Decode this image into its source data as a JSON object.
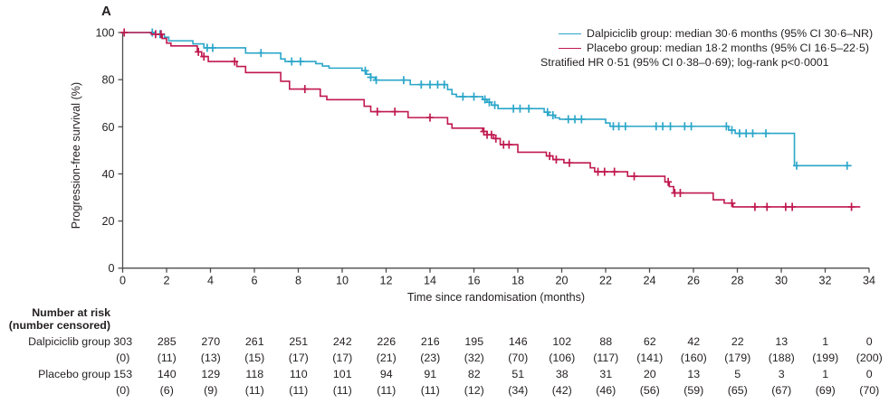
{
  "panel_label": "A",
  "colors": {
    "dalpiciclib": "#2BA6C9",
    "placebo": "#C0194F",
    "axis": "#4d4d4f",
    "text": "#231f20"
  },
  "legend": {
    "dalpiciclib_label": "Dalpiciclib group: median 30·6 months (95% CI 30·6–NR)",
    "placebo_label": "Placebo group: median 18·2 months (95% CI 16·5–22·5)",
    "stratified_note": "Stratified HR 0·51 (95% CI 0·38–0·69); log-rank p<0·0001"
  },
  "chart_data": {
    "type": "line",
    "subtype": "kaplan-meier-step",
    "title": "",
    "xlabel": "Time since randomisation (months)",
    "ylabel": "Progression-free survival (%)",
    "xlim": [
      0,
      34
    ],
    "xtick_step": 2,
    "ylim": [
      0,
      100
    ],
    "ytick_step": 20,
    "grid": false,
    "legend_position": "top-right",
    "series": [
      {
        "name": "Dalpiciclib group",
        "color": "#2BA6C9",
        "median_months": "30·6",
        "ci_95": "30·6–NR",
        "steps": [
          [
            0,
            100
          ],
          [
            1.5,
            99.3
          ],
          [
            1.9,
            98.0
          ],
          [
            2.1,
            96.5
          ],
          [
            3.2,
            95.2
          ],
          [
            3.7,
            93.5
          ],
          [
            5.6,
            91.3
          ],
          [
            7.2,
            88.8
          ],
          [
            7.4,
            87.7
          ],
          [
            8.8,
            86.8
          ],
          [
            9.1,
            85.8
          ],
          [
            9.4,
            84.9
          ],
          [
            10.9,
            83.8
          ],
          [
            11.1,
            82.3
          ],
          [
            11.3,
            81.0
          ],
          [
            11.5,
            79.8
          ],
          [
            13.1,
            77.9
          ],
          [
            14.8,
            75.8
          ],
          [
            15.0,
            73.8
          ],
          [
            15.2,
            72.8
          ],
          [
            16.4,
            71.6
          ],
          [
            16.6,
            70.4
          ],
          [
            16.8,
            69.2
          ],
          [
            17.1,
            67.7
          ],
          [
            19.2,
            66.2
          ],
          [
            19.4,
            64.9
          ],
          [
            19.7,
            63.8
          ],
          [
            19.9,
            63.2
          ],
          [
            22.0,
            61.6
          ],
          [
            22.2,
            60.2
          ],
          [
            27.6,
            58.6
          ],
          [
            27.9,
            57.2
          ],
          [
            30.6,
            43.5
          ]
        ],
        "end_month": 33.2,
        "censor_months": [
          1.35,
          1.7,
          3.85,
          4.1,
          6.3,
          7.7,
          8.1,
          11.05,
          11.3,
          11.55,
          12.8,
          13.6,
          14.0,
          14.35,
          14.65,
          15.5,
          16.0,
          16.5,
          16.7,
          16.95,
          17.8,
          18.1,
          18.5,
          19.35,
          19.6,
          20.3,
          20.6,
          20.9,
          22.35,
          22.6,
          22.9,
          24.3,
          24.6,
          24.95,
          25.6,
          25.9,
          27.5,
          27.75,
          28.1,
          28.4,
          28.7,
          29.3,
          30.7,
          33.0
        ]
      },
      {
        "name": "Placebo group",
        "color": "#C0194F",
        "median_months": "18·2",
        "ci_95": "16·5–22·5",
        "steps": [
          [
            0,
            100
          ],
          [
            1.3,
            99.3
          ],
          [
            1.8,
            97.5
          ],
          [
            2.0,
            95.5
          ],
          [
            2.2,
            94.3
          ],
          [
            3.4,
            91.8
          ],
          [
            3.6,
            89.8
          ],
          [
            3.9,
            87.7
          ],
          [
            5.2,
            85.6
          ],
          [
            5.6,
            83.0
          ],
          [
            7.2,
            79.3
          ],
          [
            7.6,
            76.0
          ],
          [
            9.0,
            73.0
          ],
          [
            9.3,
            71.5
          ],
          [
            11.0,
            68.7
          ],
          [
            11.3,
            66.4
          ],
          [
            13.0,
            63.9
          ],
          [
            14.8,
            61.2
          ],
          [
            15.0,
            59.4
          ],
          [
            16.4,
            58.0
          ],
          [
            16.6,
            56.6
          ],
          [
            16.9,
            55.0
          ],
          [
            17.2,
            52.4
          ],
          [
            18.0,
            49.2
          ],
          [
            19.3,
            47.6
          ],
          [
            19.6,
            46.1
          ],
          [
            20.1,
            44.7
          ],
          [
            21.3,
            42.6
          ],
          [
            21.5,
            40.9
          ],
          [
            23.0,
            39.0
          ],
          [
            24.7,
            36.6
          ],
          [
            24.9,
            34.6
          ],
          [
            25.1,
            31.9
          ],
          [
            26.9,
            29.0
          ],
          [
            27.4,
            27.6
          ],
          [
            27.8,
            26.0
          ]
        ],
        "end_month": 33.6,
        "censor_months": [
          0.07,
          1.5,
          1.75,
          3.45,
          3.7,
          5.1,
          8.3,
          11.6,
          12.4,
          14.0,
          16.45,
          16.6,
          16.8,
          17.0,
          17.35,
          17.6,
          19.45,
          19.75,
          20.35,
          21.65,
          21.95,
          22.4,
          23.3,
          24.85,
          25.15,
          25.4,
          27.75,
          28.8,
          29.35,
          30.2,
          30.5,
          33.2
        ]
      }
    ]
  },
  "risk_table": {
    "header_line1": "Number at risk",
    "header_line2": "(number censored)",
    "time_points": [
      0,
      2,
      4,
      6,
      8,
      10,
      12,
      14,
      16,
      18,
      20,
      22,
      24,
      26,
      28,
      30,
      32,
      34
    ],
    "groups": [
      {
        "label": "Dalpiciclib group",
        "at_risk": [
          "303",
          "285",
          "270",
          "261",
          "251",
          "242",
          "226",
          "216",
          "195",
          "146",
          "102",
          "88",
          "62",
          "42",
          "22",
          "13",
          "1",
          "0"
        ],
        "censored": [
          "(0)",
          "(11)",
          "(13)",
          "(15)",
          "(17)",
          "(17)",
          "(21)",
          "(23)",
          "(32)",
          "(70)",
          "(106)",
          "(117)",
          "(141)",
          "(160)",
          "(179)",
          "(188)",
          "(199)",
          "(200)"
        ]
      },
      {
        "label": "Placebo group",
        "at_risk": [
          "153",
          "140",
          "129",
          "118",
          "110",
          "101",
          "94",
          "91",
          "82",
          "51",
          "38",
          "31",
          "20",
          "13",
          "5",
          "3",
          "1",
          "0"
        ],
        "censored": [
          "(0)",
          "(6)",
          "(9)",
          "(11)",
          "(11)",
          "(11)",
          "(11)",
          "(11)",
          "(12)",
          "(34)",
          "(42)",
          "(46)",
          "(56)",
          "(59)",
          "(65)",
          "(67)",
          "(69)",
          "(70)"
        ]
      }
    ]
  }
}
